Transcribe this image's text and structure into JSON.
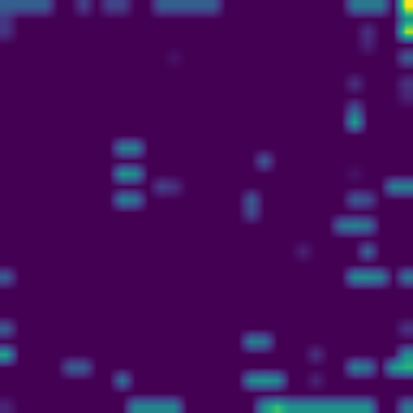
{
  "chart_data": {
    "type": "heatmap",
    "tick_labels": false,
    "color": "viridis",
    "color_range": [
      0,
      1
    ],
    "cells": [
      [
        0.3,
        0.3,
        0.3,
        0.3,
        0,
        0,
        0.2,
        0,
        0.2,
        0.2,
        0,
        0,
        0.3,
        0.3,
        0.3,
        0.3,
        0.3,
        0,
        0,
        0,
        0,
        0,
        0,
        0,
        0,
        0,
        0,
        0.4,
        0.4,
        0.4,
        0,
        1.0
      ],
      [
        0.15,
        0,
        0,
        0,
        0,
        0,
        0,
        0,
        0,
        0,
        0,
        0,
        0,
        0,
        0,
        0,
        0,
        0,
        0,
        0,
        0,
        0,
        0,
        0,
        0,
        0,
        0,
        0,
        0,
        0,
        0,
        0.5
      ],
      [
        0.15,
        0,
        0,
        0,
        0,
        0,
        0,
        0,
        0,
        0,
        0,
        0,
        0,
        0,
        0,
        0,
        0,
        0,
        0,
        0,
        0,
        0,
        0,
        0,
        0,
        0,
        0,
        0,
        0.15,
        0,
        0,
        0.9
      ],
      [
        0,
        0,
        0,
        0,
        0,
        0,
        0,
        0,
        0,
        0,
        0,
        0,
        0,
        0,
        0,
        0,
        0,
        0,
        0,
        0,
        0,
        0,
        0,
        0,
        0,
        0,
        0,
        0,
        0.1,
        0,
        0,
        0
      ],
      [
        0,
        0,
        0,
        0,
        0,
        0,
        0,
        0,
        0,
        0,
        0,
        0,
        0,
        0.05,
        0,
        0,
        0,
        0,
        0,
        0,
        0,
        0,
        0,
        0,
        0,
        0,
        0,
        0,
        0,
        0,
        0,
        0.3
      ],
      [
        0,
        0,
        0,
        0,
        0,
        0,
        0,
        0,
        0,
        0,
        0,
        0,
        0,
        0,
        0,
        0,
        0,
        0,
        0,
        0,
        0,
        0,
        0,
        0,
        0,
        0,
        0,
        0,
        0,
        0,
        0,
        0
      ],
      [
        0,
        0,
        0,
        0,
        0,
        0,
        0,
        0,
        0,
        0,
        0,
        0,
        0,
        0,
        0,
        0,
        0,
        0,
        0,
        0,
        0,
        0,
        0,
        0,
        0,
        0,
        0,
        0.15,
        0,
        0,
        0,
        0.15
      ],
      [
        0,
        0,
        0,
        0,
        0,
        0,
        0,
        0,
        0,
        0,
        0,
        0,
        0,
        0,
        0,
        0,
        0,
        0,
        0,
        0,
        0,
        0,
        0,
        0,
        0,
        0,
        0,
        0,
        0,
        0,
        0,
        0.1
      ],
      [
        0,
        0,
        0,
        0,
        0,
        0,
        0,
        0,
        0,
        0,
        0,
        0,
        0,
        0,
        0,
        0,
        0,
        0,
        0,
        0,
        0,
        0,
        0,
        0,
        0,
        0,
        0,
        0.3,
        0,
        0,
        0,
        0
      ],
      [
        0,
        0,
        0,
        0,
        0,
        0,
        0,
        0,
        0,
        0,
        0,
        0,
        0,
        0,
        0,
        0,
        0,
        0,
        0,
        0,
        0,
        0,
        0,
        0,
        0,
        0,
        0,
        0.6,
        0,
        0,
        0,
        0
      ],
      [
        0,
        0,
        0,
        0,
        0,
        0,
        0,
        0,
        0,
        0,
        0,
        0,
        0,
        0,
        0,
        0,
        0,
        0,
        0,
        0,
        0,
        0,
        0,
        0,
        0,
        0,
        0,
        0,
        0,
        0,
        0,
        0
      ],
      [
        0,
        0,
        0,
        0,
        0,
        0,
        0,
        0,
        0,
        0.45,
        0.45,
        0,
        0,
        0,
        0,
        0,
        0,
        0,
        0,
        0,
        0,
        0,
        0,
        0,
        0,
        0,
        0,
        0,
        0,
        0,
        0,
        0
      ],
      [
        0,
        0,
        0,
        0,
        0,
        0,
        0,
        0,
        0,
        0,
        0,
        0,
        0,
        0,
        0,
        0,
        0,
        0,
        0,
        0,
        0.3,
        0,
        0,
        0,
        0,
        0,
        0,
        0,
        0,
        0,
        0,
        0
      ],
      [
        0,
        0,
        0,
        0,
        0,
        0,
        0,
        0,
        0,
        0.55,
        0.5,
        0,
        0,
        0,
        0,
        0,
        0,
        0,
        0,
        0,
        0,
        0,
        0,
        0,
        0,
        0,
        0,
        0.05,
        0,
        0,
        0,
        0
      ],
      [
        0,
        0,
        0,
        0,
        0,
        0,
        0,
        0,
        0,
        0,
        0,
        0,
        0.2,
        0.15,
        0,
        0,
        0,
        0,
        0,
        0,
        0,
        0,
        0,
        0,
        0,
        0,
        0,
        0,
        0,
        0,
        0.45,
        0.45
      ],
      [
        0,
        0,
        0,
        0,
        0,
        0,
        0,
        0,
        0,
        0.45,
        0.4,
        0,
        0,
        0,
        0,
        0,
        0,
        0,
        0,
        0.3,
        0,
        0,
        0,
        0,
        0,
        0,
        0,
        0.3,
        0.25,
        0,
        0,
        0
      ],
      [
        0,
        0,
        0,
        0,
        0,
        0,
        0,
        0,
        0,
        0,
        0,
        0,
        0,
        0,
        0,
        0,
        0,
        0,
        0,
        0.25,
        0,
        0,
        0,
        0,
        0,
        0,
        0,
        0,
        0,
        0,
        0,
        0
      ],
      [
        0,
        0,
        0,
        0,
        0,
        0,
        0,
        0,
        0,
        0,
        0,
        0,
        0,
        0,
        0,
        0,
        0,
        0,
        0,
        0,
        0,
        0,
        0,
        0,
        0,
        0,
        0.4,
        0.45,
        0.4,
        0,
        0,
        0
      ],
      [
        0,
        0,
        0,
        0,
        0,
        0,
        0,
        0,
        0,
        0,
        0,
        0,
        0,
        0,
        0,
        0,
        0,
        0,
        0,
        0,
        0,
        0,
        0,
        0,
        0,
        0,
        0,
        0,
        0,
        0,
        0,
        0
      ],
      [
        0,
        0,
        0,
        0,
        0,
        0,
        0,
        0,
        0,
        0,
        0,
        0,
        0,
        0,
        0,
        0,
        0,
        0,
        0,
        0,
        0,
        0,
        0,
        0.1,
        0,
        0,
        0,
        0,
        0.35,
        0,
        0,
        0
      ],
      [
        0,
        0,
        0,
        0,
        0,
        0,
        0,
        0,
        0,
        0,
        0,
        0,
        0,
        0,
        0,
        0,
        0,
        0,
        0,
        0,
        0,
        0,
        0,
        0,
        0,
        0,
        0,
        0,
        0,
        0,
        0,
        0
      ],
      [
        0.3,
        0,
        0,
        0,
        0,
        0,
        0,
        0,
        0,
        0,
        0,
        0,
        0,
        0,
        0,
        0,
        0,
        0,
        0,
        0,
        0,
        0,
        0,
        0,
        0,
        0,
        0,
        0.5,
        0.5,
        0.45,
        0,
        0.4
      ],
      [
        0,
        0,
        0,
        0,
        0,
        0,
        0,
        0,
        0,
        0,
        0,
        0,
        0,
        0,
        0,
        0,
        0,
        0,
        0,
        0,
        0,
        0,
        0,
        0,
        0,
        0,
        0,
        0,
        0,
        0,
        0,
        0
      ],
      [
        0,
        0,
        0,
        0,
        0,
        0,
        0,
        0,
        0,
        0,
        0,
        0,
        0,
        0,
        0,
        0,
        0,
        0,
        0,
        0,
        0,
        0,
        0,
        0,
        0,
        0,
        0,
        0,
        0,
        0,
        0,
        0
      ],
      [
        0,
        0,
        0,
        0,
        0,
        0,
        0,
        0,
        0,
        0,
        0,
        0,
        0,
        0,
        0,
        0,
        0,
        0,
        0,
        0,
        0,
        0,
        0,
        0,
        0,
        0,
        0,
        0,
        0,
        0,
        0,
        0
      ],
      [
        0.3,
        0,
        0,
        0,
        0,
        0,
        0,
        0,
        0,
        0,
        0,
        0,
        0,
        0,
        0,
        0,
        0,
        0,
        0,
        0,
        0,
        0,
        0,
        0,
        0,
        0,
        0,
        0,
        0,
        0,
        0,
        0.15
      ],
      [
        0,
        0,
        0,
        0,
        0,
        0,
        0,
        0,
        0,
        0,
        0,
        0,
        0,
        0,
        0,
        0,
        0,
        0,
        0,
        0.45,
        0.4,
        0,
        0,
        0,
        0,
        0,
        0,
        0,
        0,
        0,
        0,
        0
      ],
      [
        0.6,
        0,
        0,
        0,
        0,
        0,
        0,
        0,
        0,
        0,
        0,
        0,
        0,
        0,
        0,
        0,
        0,
        0,
        0,
        0,
        0,
        0,
        0,
        0,
        0.15,
        0,
        0,
        0,
        0,
        0,
        0,
        0.5
      ],
      [
        0,
        0,
        0,
        0,
        0,
        0.3,
        0.3,
        0,
        0,
        0,
        0,
        0,
        0,
        0,
        0,
        0,
        0,
        0,
        0,
        0,
        0,
        0,
        0,
        0,
        0,
        0,
        0,
        0.45,
        0.4,
        0,
        0.55,
        0.65
      ],
      [
        0,
        0,
        0,
        0,
        0,
        0,
        0,
        0,
        0,
        0.4,
        0,
        0,
        0,
        0,
        0,
        0,
        0,
        0,
        0,
        0.5,
        0.55,
        0.5,
        0,
        0,
        0.1,
        0,
        0,
        0,
        0,
        0,
        0,
        0
      ],
      [
        0,
        0,
        0,
        0,
        0,
        0,
        0,
        0,
        0,
        0,
        0,
        0,
        0,
        0,
        0,
        0,
        0,
        0,
        0,
        0,
        0,
        0,
        0,
        0,
        0,
        0,
        0,
        0,
        0,
        0,
        0,
        0
      ],
      [
        0.1,
        0,
        0,
        0,
        0,
        0,
        0,
        0,
        0,
        0,
        0.45,
        0.45,
        0.45,
        0.45,
        0,
        0,
        0,
        0,
        0,
        0,
        0.5,
        0.7,
        0.5,
        0.5,
        0.5,
        0.5,
        0.5,
        0.5,
        0.5,
        0,
        0,
        0.4
      ]
    ]
  }
}
